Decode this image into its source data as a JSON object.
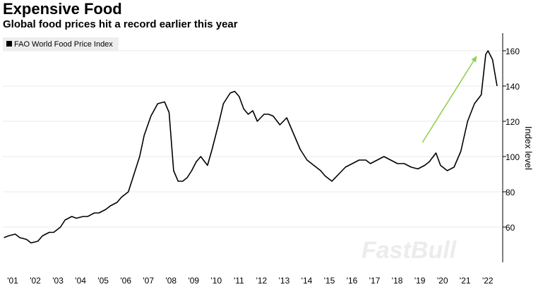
{
  "header": {
    "title": "Expensive Food",
    "subtitle": "Global food prices hit a record earlier this year"
  },
  "watermark": "FastBull",
  "colors": {
    "line": "#000000",
    "arrow": "#8fd14f",
    "grid": "#e8e8e8",
    "legend_bg": "#eeeeee"
  },
  "chart_data": {
    "type": "line",
    "title": "Expensive Food",
    "subtitle": "Global food prices hit a record earlier this year",
    "ylabel": "Index level",
    "xlabel": "",
    "ylim": [
      40,
      170
    ],
    "xlim": [
      2000.75,
      2022.85
    ],
    "yticks": [
      60,
      80,
      100,
      120,
      140,
      160
    ],
    "xtick_labels": [
      "'01",
      "'02",
      "'03",
      "'04",
      "'05",
      "'06",
      "'07",
      "'08",
      "'09",
      "'10",
      "'11",
      "'12",
      "'13",
      "'14",
      "'15",
      "'16",
      "'17",
      "'18",
      "'19",
      "'20",
      "'21",
      "'22"
    ],
    "xtick_years": [
      2001,
      2002,
      2003,
      2004,
      2005,
      2006,
      2007,
      2008,
      2009,
      2010,
      2011,
      2012,
      2013,
      2014,
      2015,
      2016,
      2017,
      2018,
      2019,
      2020,
      2021,
      2022
    ],
    "grid": "horizontal",
    "legend": "top-left",
    "series": [
      {
        "name": "FAO World Food Price Index",
        "x": [
          2000.8,
          2001.0,
          2001.3,
          2001.5,
          2001.8,
          2002.0,
          2002.3,
          2002.5,
          2002.8,
          2003.0,
          2003.3,
          2003.5,
          2003.8,
          2004.0,
          2004.3,
          2004.5,
          2004.8,
          2005.0,
          2005.3,
          2005.5,
          2005.8,
          2006.0,
          2006.3,
          2006.5,
          2006.8,
          2007.0,
          2007.3,
          2007.6,
          2007.9,
          2008.1,
          2008.3,
          2008.5,
          2008.7,
          2008.9,
          2009.1,
          2009.3,
          2009.5,
          2009.8,
          2010.0,
          2010.3,
          2010.5,
          2010.8,
          2011.0,
          2011.2,
          2011.4,
          2011.6,
          2011.8,
          2012.0,
          2012.3,
          2012.5,
          2012.7,
          2013.0,
          2013.3,
          2013.6,
          2013.9,
          2014.2,
          2014.5,
          2014.8,
          2015.0,
          2015.3,
          2015.6,
          2015.9,
          2016.2,
          2016.5,
          2016.8,
          2017.0,
          2017.3,
          2017.6,
          2017.9,
          2018.2,
          2018.5,
          2018.8,
          2019.1,
          2019.4,
          2019.6,
          2019.9,
          2020.1,
          2020.4,
          2020.7,
          2021.0,
          2021.3,
          2021.6,
          2021.9,
          2022.1,
          2022.2,
          2022.4,
          2022.6
        ],
        "values": [
          54,
          55,
          56,
          54,
          53,
          51,
          52,
          55,
          57,
          57,
          60,
          64,
          66,
          65,
          66,
          66,
          68,
          68,
          70,
          72,
          74,
          77,
          80,
          88,
          100,
          112,
          123,
          130,
          131,
          125,
          92,
          86,
          86,
          88,
          92,
          97,
          100,
          95,
          104,
          119,
          130,
          136,
          137,
          134,
          127,
          124,
          126,
          120,
          124,
          124,
          123,
          118,
          122,
          113,
          104,
          98,
          95,
          92,
          89,
          86,
          90,
          94,
          96,
          98,
          98,
          96,
          98,
          100,
          98,
          96,
          96,
          94,
          93,
          95,
          97,
          102,
          95,
          92,
          94,
          103,
          120,
          130,
          135,
          158,
          160,
          155,
          140
        ]
      }
    ],
    "annotations": [
      {
        "type": "arrow",
        "from": [
          2019.3,
          108
        ],
        "to": [
          2021.7,
          157
        ]
      }
    ]
  }
}
